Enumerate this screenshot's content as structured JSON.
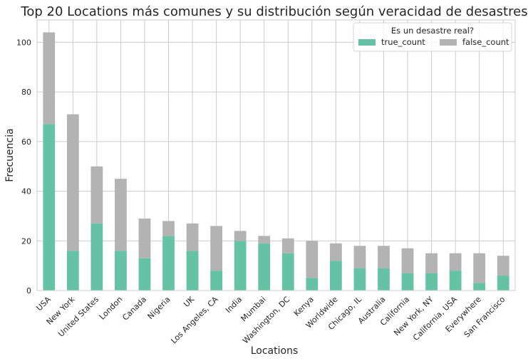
{
  "chart_data": {
    "type": "bar",
    "stacked": true,
    "title": "Top 20 Locations más comunes y su distribución según veracidad de desastres",
    "xlabel": "Locations",
    "ylabel": "Frecuencia",
    "ylim": [
      0,
      109
    ],
    "yticks": [
      0,
      20,
      40,
      60,
      80,
      100
    ],
    "grid": true,
    "legend": {
      "title": "Es un desastre real?",
      "placement": "top-right"
    },
    "categories": [
      "USA",
      "New York",
      "United States",
      "London",
      "Canada",
      "Nigeria",
      "UK",
      "Los Angeles, CA",
      "India",
      "Mumbai",
      "Washington, DC",
      "Kenya",
      "Worldwide",
      "Chicago, IL",
      "Australia",
      "California",
      "New York, NY",
      "California, USA",
      "Everywhere",
      "San Francisco"
    ],
    "series": [
      {
        "name": "true_count",
        "color": "#66c2a5",
        "values": [
          67,
          16,
          27,
          16,
          13,
          22,
          16,
          8,
          20,
          19,
          15,
          5,
          12,
          9,
          9,
          7,
          7,
          8,
          3,
          6
        ]
      },
      {
        "name": "false_count",
        "color": "#b3b3b3",
        "values": [
          37,
          55,
          23,
          29,
          16,
          6,
          11,
          18,
          4,
          3,
          6,
          15,
          7,
          9,
          9,
          10,
          8,
          7,
          12,
          8
        ]
      }
    ]
  }
}
